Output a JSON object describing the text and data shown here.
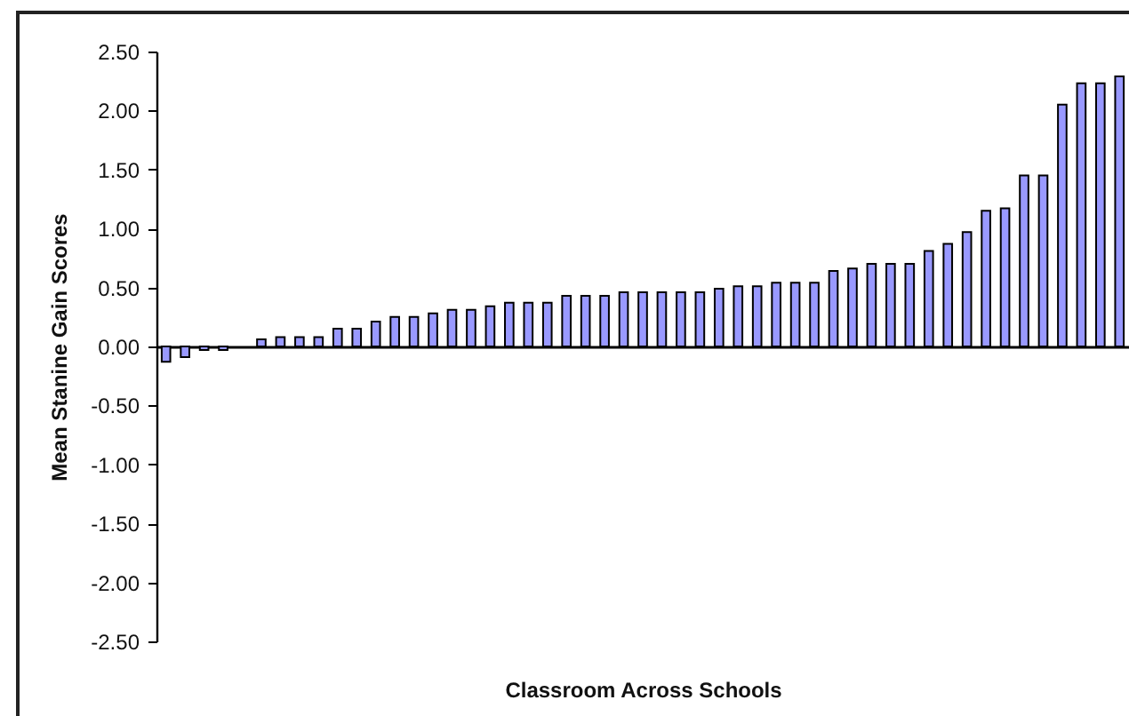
{
  "chart_data": {
    "type": "bar",
    "xlabel": "Classroom Across Schools",
    "ylabel": "Mean Stanine Gain Scores",
    "categories": [
      null,
      null,
      null,
      null,
      null,
      null,
      null,
      null,
      null,
      null,
      null,
      null,
      null,
      null,
      null,
      null,
      null,
      null,
      null,
      null,
      null,
      null,
      null,
      null,
      null,
      null,
      null,
      null,
      null,
      null,
      null,
      null,
      null,
      null,
      null,
      null,
      null,
      null,
      null,
      null,
      null,
      null,
      null,
      null,
      null,
      null,
      null,
      null,
      null,
      null,
      null
    ],
    "values": [
      -0.13,
      -0.09,
      -0.03,
      -0.03,
      null,
      0.06,
      0.08,
      0.08,
      0.08,
      0.15,
      0.15,
      0.21,
      0.25,
      0.25,
      0.28,
      0.31,
      0.31,
      0.34,
      0.37,
      0.37,
      0.37,
      0.43,
      0.43,
      0.43,
      0.46,
      0.46,
      0.46,
      0.46,
      0.46,
      0.49,
      0.51,
      0.51,
      0.54,
      0.54,
      0.54,
      0.64,
      0.66,
      0.7,
      0.7,
      0.7,
      0.81,
      0.87,
      0.97,
      1.15,
      1.17,
      1.45,
      1.45,
      2.05,
      2.23,
      2.23,
      2.29
    ],
    "color": "#9999ff",
    "ylim": [
      -2.5,
      2.5
    ],
    "yticks": [
      {
        "value": 2.5,
        "label": "2.50"
      },
      {
        "value": 2,
        "label": "2.00"
      },
      {
        "value": 1.5,
        "label": "1.50"
      },
      {
        "value": 1,
        "label": "1.00"
      },
      {
        "value": 0.5,
        "label": "0.50"
      },
      {
        "value": 0,
        "label": "0.00"
      },
      {
        "value": -0.5,
        "label": "-0.50"
      },
      {
        "value": -1,
        "label": "-1.00"
      },
      {
        "value": -1.5,
        "label": "-1.50"
      },
      {
        "value": -2,
        "label": "-2.00"
      },
      {
        "value": -2.5,
        "label": "-2.50"
      }
    ],
    "tick_labels": "y"
  }
}
